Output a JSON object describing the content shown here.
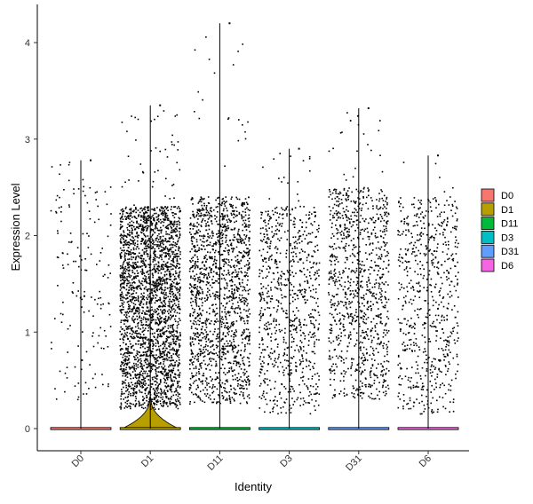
{
  "chart_data": {
    "type": "violin",
    "xlabel": "Identity",
    "ylabel": "Expression Level",
    "ylim": [
      -0.24,
      4.4
    ],
    "yticks": [
      0,
      1,
      2,
      3,
      4
    ],
    "grid": false,
    "legend_position": "right",
    "categories": [
      "D0",
      "D1",
      "D11",
      "D3",
      "D31",
      "D6"
    ],
    "colors": {
      "D0": "#F8766D",
      "D1": "#B79F00",
      "D11": "#00BA38",
      "D3": "#00BFC4",
      "D31": "#619CFF",
      "D6": "#F564E3"
    },
    "groups": [
      {
        "name": "D0",
        "max": 2.78,
        "nonzero_points": 160,
        "nonzero_range": [
          0.3,
          2.6
        ],
        "violin_width": [
          0.0,
          0.0
        ]
      },
      {
        "name": "D1",
        "max": 3.35,
        "nonzero_points": 2600,
        "nonzero_range": [
          0.2,
          2.3
        ],
        "violin_width": [
          0.9,
          0.0
        ]
      },
      {
        "name": "D11",
        "max": 4.2,
        "nonzero_points": 1500,
        "nonzero_range": [
          0.25,
          2.4
        ],
        "violin_width": [
          0.0,
          0.0
        ]
      },
      {
        "name": "D3",
        "max": 2.9,
        "nonzero_points": 800,
        "nonzero_range": [
          0.15,
          2.3
        ],
        "violin_width": [
          0.0,
          0.0
        ]
      },
      {
        "name": "D31",
        "max": 3.32,
        "nonzero_points": 1000,
        "nonzero_range": [
          0.3,
          2.5
        ],
        "violin_width": [
          0.0,
          0.0
        ]
      },
      {
        "name": "D6",
        "max": 2.83,
        "nonzero_points": 650,
        "nonzero_range": [
          0.15,
          2.4
        ],
        "violin_width": [
          0.0,
          0.0
        ]
      }
    ]
  },
  "legend": {
    "items": [
      "D0",
      "D1",
      "D11",
      "D3",
      "D31",
      "D6"
    ]
  }
}
